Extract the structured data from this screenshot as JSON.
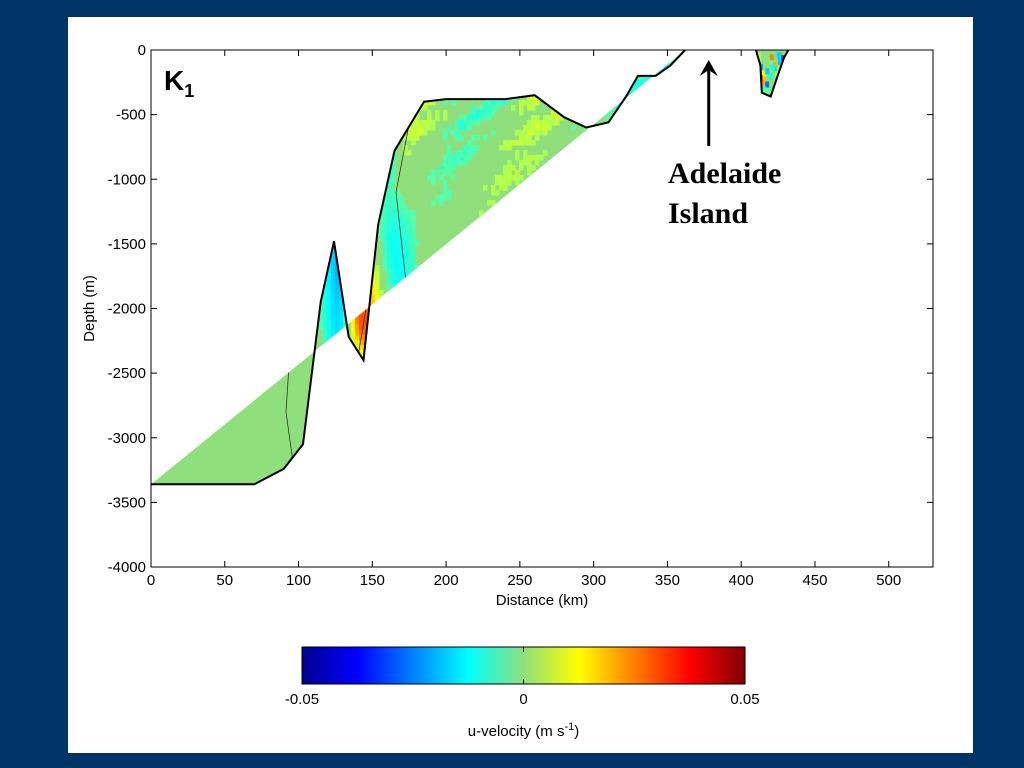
{
  "chart_data": {
    "type": "heatmap",
    "panel_label": "K",
    "panel_label_sub": "1",
    "xlabel": "Distance (km)",
    "ylabel": "Depth (m)",
    "xlim": [
      0,
      530
    ],
    "ylim": [
      -4000,
      0
    ],
    "x_ticks": [
      "0",
      "50",
      "100",
      "150",
      "200",
      "250",
      "300",
      "350",
      "400",
      "450",
      "500"
    ],
    "y_ticks": [
      "0",
      "-500",
      "-1000",
      "-1500",
      "-2000",
      "-2500",
      "-3000",
      "-3500",
      "-4000"
    ],
    "annotation": {
      "text_line1": "Adelaide",
      "text_line2": "Island",
      "x": 378
    },
    "bathymetry": {
      "main": [
        [
          0,
          -3360
        ],
        [
          70,
          -3360
        ],
        [
          90,
          -3240
        ],
        [
          103,
          -3050
        ],
        [
          115,
          -1950
        ],
        [
          124,
          -1480
        ],
        [
          134,
          -2220
        ],
        [
          144,
          -2400
        ],
        [
          154,
          -1350
        ],
        [
          165,
          -780
        ],
        [
          185,
          -400
        ],
        [
          200,
          -380
        ],
        [
          240,
          -380
        ],
        [
          260,
          -350
        ],
        [
          280,
          -520
        ],
        [
          295,
          -600
        ],
        [
          310,
          -560
        ],
        [
          322,
          -360
        ],
        [
          330,
          -200
        ],
        [
          342,
          -200
        ],
        [
          352,
          -120
        ],
        [
          362,
          0
        ]
      ],
      "island": [
        [
          410,
          0
        ],
        [
          413,
          -120
        ],
        [
          414,
          -330
        ],
        [
          420,
          -360
        ],
        [
          425,
          -190
        ],
        [
          429,
          -60
        ],
        [
          432,
          0
        ]
      ]
    },
    "colorbar": {
      "colormap": "jet",
      "min": -0.05,
      "max": 0.05,
      "tick_labels": [
        "-0.05",
        "0",
        "0.05"
      ],
      "label_main": "u-velocity (m s",
      "label_sup": "-1",
      "label_end": ")"
    },
    "colors": {
      "background": "#003366",
      "panel": "#ffffff",
      "ocean_zero": "#8fe07c"
    }
  }
}
